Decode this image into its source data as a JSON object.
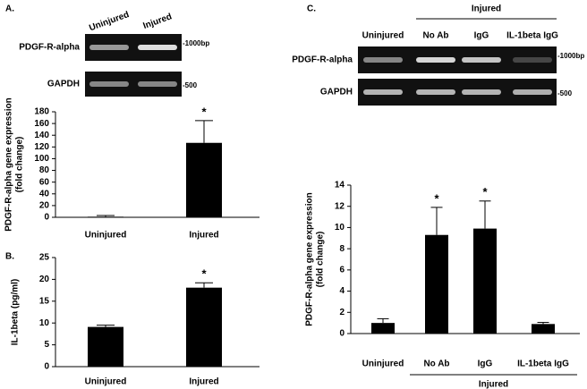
{
  "panel_labels": [
    "A.",
    "B.",
    "C."
  ],
  "gels": [
    {
      "lanes": [
        "Uninjured",
        "Injured"
      ],
      "rows": [
        {
          "label": "PDGF-R-alpha",
          "marker": "-1000bp"
        },
        {
          "label": "GAPDH",
          "marker": "-500"
        }
      ]
    },
    {
      "group": "Injured",
      "lanes": [
        "Uninjured",
        "No Ab",
        "IgG",
        "IL-1beta IgG"
      ],
      "rows": [
        {
          "label": "PDGF-R-alpha",
          "marker": "-1000bp"
        },
        {
          "label": "GAPDH",
          "marker": "-500"
        }
      ]
    }
  ],
  "chart_data": [
    {
      "type": "bar",
      "ylabel": [
        "PDGF-R-alpha gene expression",
        "(fold change)"
      ],
      "categories": [
        "Uninjured",
        "Injured"
      ],
      "values": [
        1,
        127
      ],
      "errors": [
        2,
        38
      ],
      "significance": [
        null,
        "*"
      ],
      "color": "#000000",
      "ylim": [
        0,
        180
      ],
      "yticks": [
        0,
        20,
        40,
        60,
        80,
        100,
        120,
        140,
        160,
        180
      ]
    },
    {
      "type": "bar",
      "ylabel": [
        "IL-1beta (pg/ml)"
      ],
      "categories": [
        "Uninjured",
        "Injured"
      ],
      "values": [
        9.1,
        18.1
      ],
      "errors": [
        0.4,
        1.1
      ],
      "significance": [
        null,
        "*"
      ],
      "color": "#000000",
      "ylim": [
        0,
        25
      ],
      "yticks": [
        0,
        5,
        10,
        15,
        20,
        25
      ]
    },
    {
      "type": "bar",
      "ylabel": [
        "PDGF-R-alpha gene expression",
        "(fold change)"
      ],
      "categories": [
        "Uninjured",
        "No Ab",
        "IgG",
        "IL-1beta IgG"
      ],
      "values": [
        1.0,
        9.3,
        9.9,
        0.9
      ],
      "errors": [
        0.4,
        2.6,
        2.6,
        0.15
      ],
      "significance": [
        null,
        "*",
        "*",
        null
      ],
      "color": "#000000",
      "groups": [
        {
          "label": "Injured",
          "categories": [
            "No Ab",
            "IgG",
            "IL-1beta IgG"
          ]
        }
      ],
      "ylim": [
        0,
        14
      ],
      "yticks": [
        0,
        2,
        4,
        6,
        8,
        10,
        12,
        14
      ]
    }
  ]
}
